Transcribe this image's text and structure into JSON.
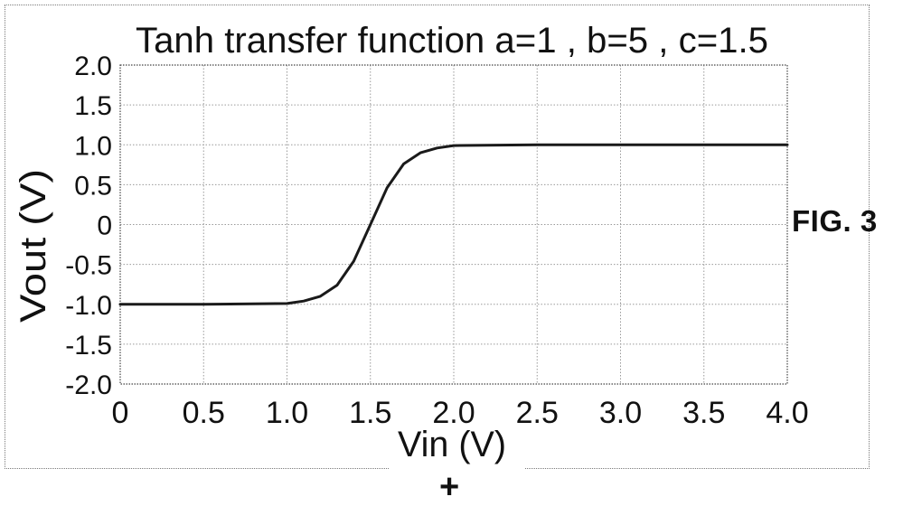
{
  "chart_data": {
    "type": "line",
    "title": "Tanh transfer function  a=1 , b=5 , c=1.5",
    "xlabel": "Vin (V)",
    "ylabel": "Vout (V)",
    "xlim": [
      0,
      4.0
    ],
    "ylim": [
      -2.0,
      2.0
    ],
    "x_ticks": [
      "0",
      "0.5",
      "1.0",
      "1.5",
      "2.0",
      "2.5",
      "3.0",
      "3.5",
      "4.0"
    ],
    "x_tick_values": [
      0,
      0.5,
      1.0,
      1.5,
      2.0,
      2.5,
      3.0,
      3.5,
      4.0
    ],
    "y_ticks": [
      "2.0",
      "1.5",
      "1.0",
      "0.5",
      "0",
      "-0.5",
      "-1.0",
      "-1.5",
      "-2.0"
    ],
    "y_tick_values": [
      2.0,
      1.5,
      1.0,
      0.5,
      0,
      -0.5,
      -1.0,
      -1.5,
      -2.0
    ],
    "grid": true,
    "series": [
      {
        "x": [
          0,
          0.5,
          1.0,
          1.1,
          1.2,
          1.3,
          1.4,
          1.5,
          1.6,
          1.7,
          1.8,
          1.9,
          2.0,
          2.5,
          3.0,
          3.5,
          4.0
        ],
        "y": [
          -1.0,
          -1.0,
          -0.99,
          -0.96,
          -0.9,
          -0.76,
          -0.46,
          0.0,
          0.46,
          0.76,
          0.9,
          0.96,
          0.99,
          1.0,
          1.0,
          1.0,
          1.0
        ]
      }
    ],
    "line_color": "#1a1a1a"
  },
  "figure_label": "FIG. 3",
  "mark": "+"
}
